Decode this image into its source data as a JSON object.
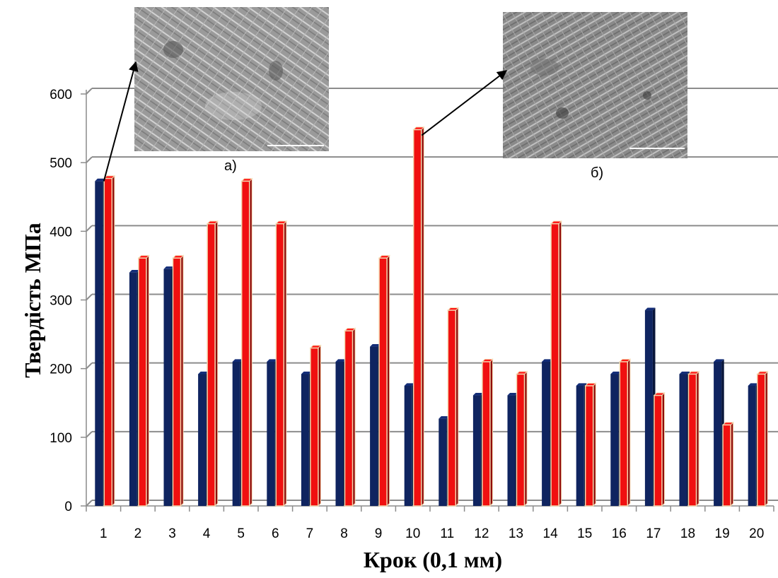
{
  "chart_data": {
    "type": "bar",
    "xlabel": "Крок (0,1 мм)",
    "ylabel": "Твердість МПа",
    "ylim": [
      0,
      600
    ],
    "yticks": [
      0,
      100,
      200,
      300,
      400,
      500,
      600
    ],
    "grid": true,
    "categories": [
      "1",
      "2",
      "3",
      "4",
      "5",
      "6",
      "7",
      "8",
      "9",
      "10",
      "11",
      "12",
      "13",
      "14",
      "15",
      "16",
      "17",
      "18",
      "19",
      "20"
    ],
    "series": [
      {
        "color": "#0f2460",
        "values": [
          473,
          340,
          345,
          192,
          210,
          210,
          192,
          210,
          232,
          175,
          127,
          161,
          161,
          210,
          175,
          192,
          285,
          192,
          210,
          175
        ]
      },
      {
        "color": "#f01010",
        "values": [
          477,
          361,
          361,
          411,
          473,
          411,
          230,
          255,
          361,
          548,
          285,
          210,
          192,
          411,
          175,
          210,
          161,
          192,
          118,
          192
        ]
      }
    ],
    "annotations": [
      {
        "label": "а)",
        "points_to_category": "1",
        "points_to_series": 1
      },
      {
        "label": "б)",
        "points_to_category": "10",
        "points_to_series": 1
      }
    ]
  }
}
